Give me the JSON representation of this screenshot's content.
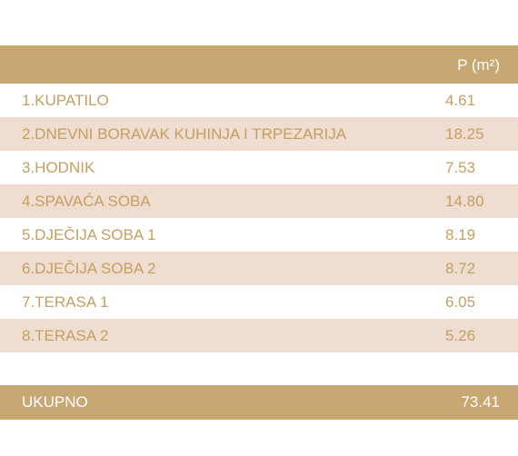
{
  "table": {
    "header": {
      "name": "",
      "value": "P (m²)"
    },
    "rows": [
      {
        "name": "1.KUPATILO",
        "value": "4.61"
      },
      {
        "name": "2.DNEVNI BORAVAK KUHINJA I TRPEZARIJA",
        "value": "18.25"
      },
      {
        "name": "3.HODNIK",
        "value": "7.53"
      },
      {
        "name": "4.SPAVAĆA SOBA",
        "value": "14.80"
      },
      {
        "name": "5.DJEČIJA SOBA 1",
        "value": "8.19"
      },
      {
        "name": "6.DJEČIJA SOBA 2",
        "value": "8.72"
      },
      {
        "name": "7.TERASA 1",
        "value": "6.05"
      },
      {
        "name": "8.TERASA 2",
        "value": "5.26"
      }
    ],
    "total": {
      "name": "UKUPNO",
      "value": "73.41"
    }
  },
  "colors": {
    "header_bg": "#c7a772",
    "alt_row_bg": "#eeddd0",
    "text": "#c49f60"
  }
}
